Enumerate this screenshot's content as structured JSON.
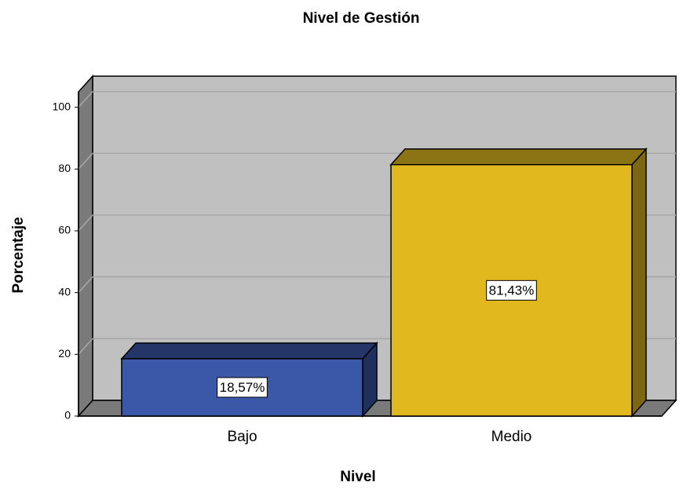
{
  "chart_data": {
    "type": "bar3d",
    "title": "Nivel de Gestión",
    "x_label": "Nivel",
    "y_label": "Porcentaje",
    "categories": [
      "Bajo",
      "Medio"
    ],
    "values": [
      18.57,
      81.43
    ],
    "value_labels": [
      "18,57%",
      "81,43%"
    ],
    "colors": [
      "#3a57a8",
      "#e1b91f"
    ],
    "ylim": [
      0,
      105
    ],
    "yticks": [
      0,
      20,
      40,
      60,
      80,
      100
    ],
    "grid": true
  }
}
